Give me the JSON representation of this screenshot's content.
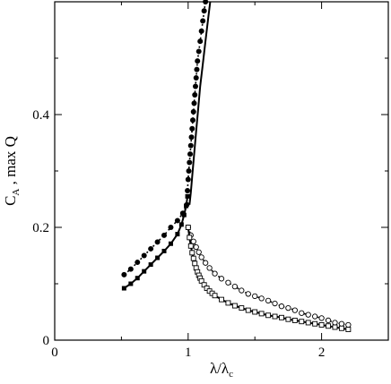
{
  "chart_data": {
    "type": "scatter",
    "xlabel": {
      "main": "λ/λ",
      "sub": "c"
    },
    "ylabel": {
      "pre": "C",
      "sub": "A",
      "post": " , max Q"
    },
    "xlim": [
      0,
      2.5
    ],
    "ylim": [
      0,
      0.6
    ],
    "x_ticks": [
      0,
      1,
      2
    ],
    "x_tick_labels": [
      "0",
      "1",
      "2"
    ],
    "y_ticks": [
      0,
      0.2,
      0.4
    ],
    "y_tick_labels": [
      "0",
      "0.2",
      "0.4"
    ],
    "grid": false,
    "series": [
      {
        "marker": "filled-square",
        "line": "solid",
        "points": [
          [
            0.52,
            0.092
          ],
          [
            0.57,
            0.1
          ],
          [
            0.62,
            0.11
          ],
          [
            0.67,
            0.122
          ],
          [
            0.72,
            0.134
          ],
          [
            0.77,
            0.146
          ],
          [
            0.82,
            0.158
          ],
          [
            0.87,
            0.171
          ],
          [
            0.92,
            0.188
          ],
          [
            0.95,
            0.205
          ],
          [
            0.97,
            0.222
          ],
          [
            0.985,
            0.238
          ],
          [
            0.995,
            0.255
          ]
        ]
      },
      {
        "marker": "filled-circle",
        "line": "dotted",
        "points": [
          [
            0.52,
            0.116
          ],
          [
            0.57,
            0.126
          ],
          [
            0.62,
            0.138
          ],
          [
            0.67,
            0.15
          ],
          [
            0.72,
            0.162
          ],
          [
            0.77,
            0.174
          ],
          [
            0.82,
            0.186
          ],
          [
            0.87,
            0.2
          ],
          [
            0.92,
            0.212
          ],
          [
            0.96,
            0.225
          ],
          [
            0.99,
            0.24
          ]
        ]
      },
      {
        "marker": "filled-circle",
        "line": "dotted",
        "points": [
          [
            0.995,
            0.265
          ],
          [
            1.0,
            0.285
          ],
          [
            1.005,
            0.3
          ],
          [
            1.01,
            0.315
          ],
          [
            1.015,
            0.33
          ],
          [
            1.02,
            0.345
          ],
          [
            1.025,
            0.36
          ],
          [
            1.03,
            0.375
          ],
          [
            1.035,
            0.39
          ],
          [
            1.04,
            0.405
          ],
          [
            1.045,
            0.42
          ],
          [
            1.05,
            0.435
          ],
          [
            1.055,
            0.45
          ],
          [
            1.06,
            0.465
          ],
          [
            1.065,
            0.48
          ],
          [
            1.07,
            0.495
          ],
          [
            1.08,
            0.512
          ],
          [
            1.09,
            0.53
          ],
          [
            1.1,
            0.548
          ],
          [
            1.11,
            0.566
          ],
          [
            1.12,
            0.584
          ],
          [
            1.13,
            0.6
          ]
        ]
      },
      {
        "marker": "open-circle",
        "line": "dotted",
        "points": [
          [
            1.0,
            0.2
          ],
          [
            1.02,
            0.186
          ],
          [
            1.04,
            0.175
          ],
          [
            1.06,
            0.165
          ],
          [
            1.08,
            0.156
          ],
          [
            1.1,
            0.147
          ],
          [
            1.13,
            0.137
          ],
          [
            1.16,
            0.128
          ],
          [
            1.2,
            0.118
          ],
          [
            1.25,
            0.109
          ],
          [
            1.3,
            0.102
          ],
          [
            1.35,
            0.095
          ],
          [
            1.4,
            0.088
          ],
          [
            1.45,
            0.082
          ],
          [
            1.5,
            0.078
          ],
          [
            1.55,
            0.074
          ],
          [
            1.6,
            0.07
          ],
          [
            1.65,
            0.065
          ],
          [
            1.7,
            0.06
          ],
          [
            1.75,
            0.057
          ],
          [
            1.8,
            0.053
          ],
          [
            1.85,
            0.048
          ],
          [
            1.9,
            0.045
          ],
          [
            1.95,
            0.042
          ],
          [
            2.0,
            0.039
          ],
          [
            2.05,
            0.035
          ],
          [
            2.1,
            0.031
          ],
          [
            2.15,
            0.029
          ],
          [
            2.2,
            0.027
          ]
        ]
      },
      {
        "marker": "open-square",
        "line": "solid",
        "points": [
          [
            1.0,
            0.2
          ],
          [
            1.01,
            0.182
          ],
          [
            1.02,
            0.167
          ],
          [
            1.03,
            0.155
          ],
          [
            1.04,
            0.145
          ],
          [
            1.05,
            0.136
          ],
          [
            1.06,
            0.128
          ],
          [
            1.07,
            0.121
          ],
          [
            1.08,
            0.115
          ],
          [
            1.09,
            0.11
          ],
          [
            1.1,
            0.105
          ],
          [
            1.12,
            0.098
          ],
          [
            1.14,
            0.092
          ],
          [
            1.16,
            0.087
          ],
          [
            1.18,
            0.083
          ],
          [
            1.2,
            0.079
          ],
          [
            1.25,
            0.072
          ],
          [
            1.3,
            0.066
          ],
          [
            1.35,
            0.061
          ],
          [
            1.4,
            0.057
          ],
          [
            1.45,
            0.053
          ],
          [
            1.5,
            0.05
          ],
          [
            1.55,
            0.047
          ],
          [
            1.6,
            0.044
          ],
          [
            1.65,
            0.042
          ],
          [
            1.7,
            0.04
          ],
          [
            1.75,
            0.037
          ],
          [
            1.8,
            0.035
          ],
          [
            1.85,
            0.033
          ],
          [
            1.9,
            0.031
          ],
          [
            1.95,
            0.029
          ],
          [
            2.0,
            0.027
          ],
          [
            2.05,
            0.025
          ],
          [
            2.1,
            0.023
          ],
          [
            2.15,
            0.021
          ],
          [
            2.2,
            0.019
          ]
        ]
      }
    ],
    "lines": [
      {
        "style": "solid",
        "points": [
          [
            1.01,
            0.24
          ],
          [
            1.02,
            0.262
          ],
          [
            1.03,
            0.29
          ],
          [
            1.045,
            0.33
          ],
          [
            1.06,
            0.37
          ],
          [
            1.075,
            0.41
          ],
          [
            1.09,
            0.45
          ],
          [
            1.11,
            0.49
          ],
          [
            1.13,
            0.53
          ],
          [
            1.15,
            0.57
          ],
          [
            1.165,
            0.6
          ]
        ]
      }
    ]
  }
}
